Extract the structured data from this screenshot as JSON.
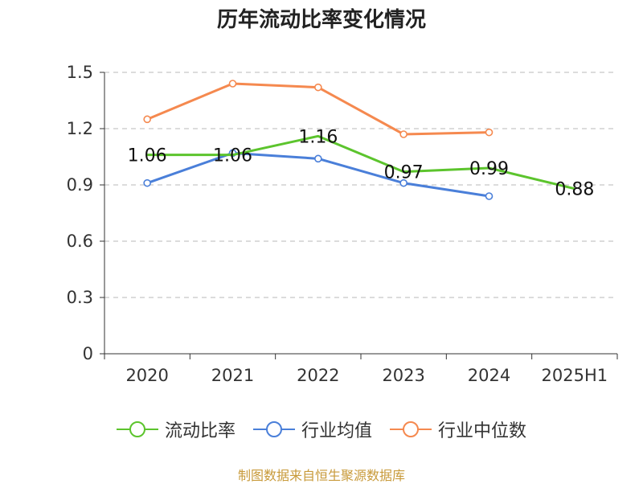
{
  "chart_data": {
    "type": "line",
    "title": "历年流动比率变化情况",
    "categories": [
      "2020",
      "2021",
      "2022",
      "2023",
      "2024",
      "2025H1"
    ],
    "ylim": [
      0,
      1.5
    ],
    "yticks": [
      "0",
      "0.3",
      "0.6",
      "0.9",
      "1.2",
      "1.5"
    ],
    "grid": true,
    "legend_position": "bottom",
    "series": [
      {
        "name": "流动比率",
        "color": "#5cc42d",
        "values": [
          1.06,
          1.06,
          1.16,
          0.97,
          0.99,
          0.88
        ],
        "labels": [
          "1.06",
          "1.06",
          "1.16",
          "0.97",
          "0.99",
          "0.88"
        ]
      },
      {
        "name": "行业均值",
        "color": "#4a7fd9",
        "values": [
          0.91,
          1.07,
          1.04,
          0.91,
          0.84,
          null
        ]
      },
      {
        "name": "行业中位数",
        "color": "#f5894f",
        "values": [
          1.25,
          1.44,
          1.42,
          1.17,
          1.18,
          null
        ]
      }
    ]
  },
  "source": "制图数据来自恒生聚源数据库"
}
